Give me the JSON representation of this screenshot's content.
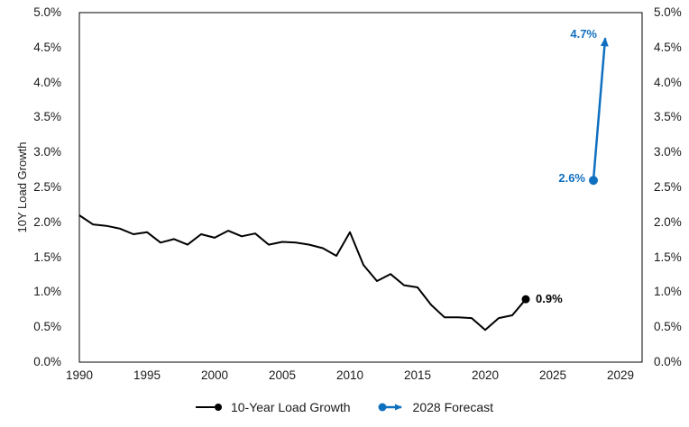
{
  "chart_data": {
    "type": "line",
    "title": "",
    "xlabel": "",
    "ylabel": "10Y Load Growth",
    "ylim": [
      0,
      5
    ],
    "grid": false,
    "y_axis_right_mirror": true,
    "y_tick_labels": [
      "0.0%",
      "0.5%",
      "1.0%",
      "1.5%",
      "2.0%",
      "2.5%",
      "3.0%",
      "3.5%",
      "4.0%",
      "4.5%",
      "5.0%"
    ],
    "x_tick_labels": [
      "1990",
      "1995",
      "2000",
      "2005",
      "2010",
      "2015",
      "2020",
      "2025",
      "2029"
    ],
    "series": [
      {
        "name": "10-Year Load Growth",
        "type": "line",
        "color": "#000000",
        "x": [
          1990,
          1991,
          1992,
          1993,
          1994,
          1995,
          1996,
          1997,
          1998,
          1999,
          2000,
          2001,
          2002,
          2003,
          2004,
          2005,
          2006,
          2007,
          2008,
          2009,
          2010,
          2011,
          2012,
          2013,
          2014,
          2015,
          2016,
          2017,
          2018,
          2019,
          2020,
          2021,
          2022,
          2023
        ],
        "values": [
          2.1,
          1.97,
          1.95,
          1.91,
          1.83,
          1.86,
          1.71,
          1.76,
          1.68,
          1.83,
          1.78,
          1.88,
          1.8,
          1.84,
          1.68,
          1.72,
          1.71,
          1.68,
          1.63,
          1.52,
          1.86,
          1.39,
          1.16,
          1.26,
          1.1,
          1.07,
          0.82,
          0.64,
          0.64,
          0.63,
          0.46,
          0.63,
          0.67,
          0.9
        ],
        "end_marker": true,
        "end_label": "0.9%"
      },
      {
        "name": "2028 Forecast",
        "type": "arrow",
        "color": "#1070C0",
        "from": {
          "x": 2028,
          "y": 2.6,
          "label": "2.6%"
        },
        "to": {
          "x": 2028.9,
          "y": 4.7,
          "label": "4.7%"
        }
      }
    ],
    "legend": {
      "position": "bottom",
      "items": [
        {
          "label": "10-Year Load Growth",
          "marker": "line-dot",
          "color": "#000000"
        },
        {
          "label": "2028 Forecast",
          "marker": "dot-arrow",
          "color": "#1070C0"
        }
      ]
    }
  }
}
